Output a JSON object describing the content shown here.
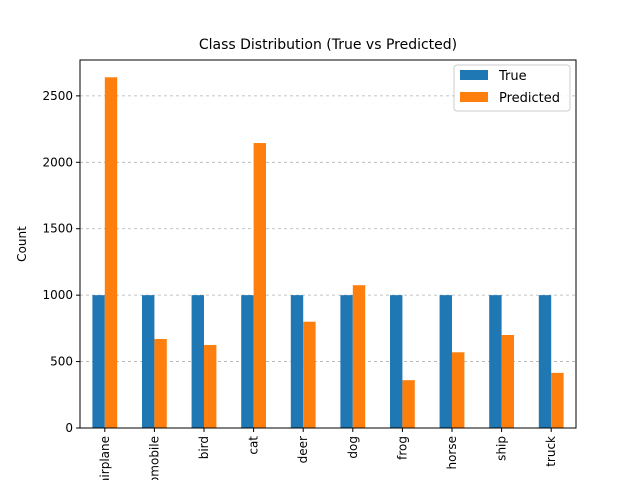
{
  "chart_data": {
    "type": "bar",
    "title": "Class Distribution (True vs Predicted)",
    "xlabel": "",
    "ylabel": "Count",
    "categories": [
      "airplane",
      "automobile",
      "bird",
      "cat",
      "deer",
      "dog",
      "frog",
      "horse",
      "ship",
      "truck"
    ],
    "series": [
      {
        "name": "True",
        "color": "#1f77b4",
        "values": [
          1000,
          1000,
          1000,
          1000,
          1000,
          1000,
          1000,
          1000,
          1000,
          1000
        ]
      },
      {
        "name": "Predicted",
        "color": "#ff7f0e",
        "values": [
          2640,
          670,
          625,
          2145,
          800,
          1075,
          360,
          570,
          700,
          415
        ]
      }
    ],
    "ylim": [
      0,
      2770
    ],
    "yticks": [
      0,
      500,
      1000,
      1500,
      2000,
      2500
    ],
    "grid": "y-dashed",
    "legend": "top-right"
  }
}
